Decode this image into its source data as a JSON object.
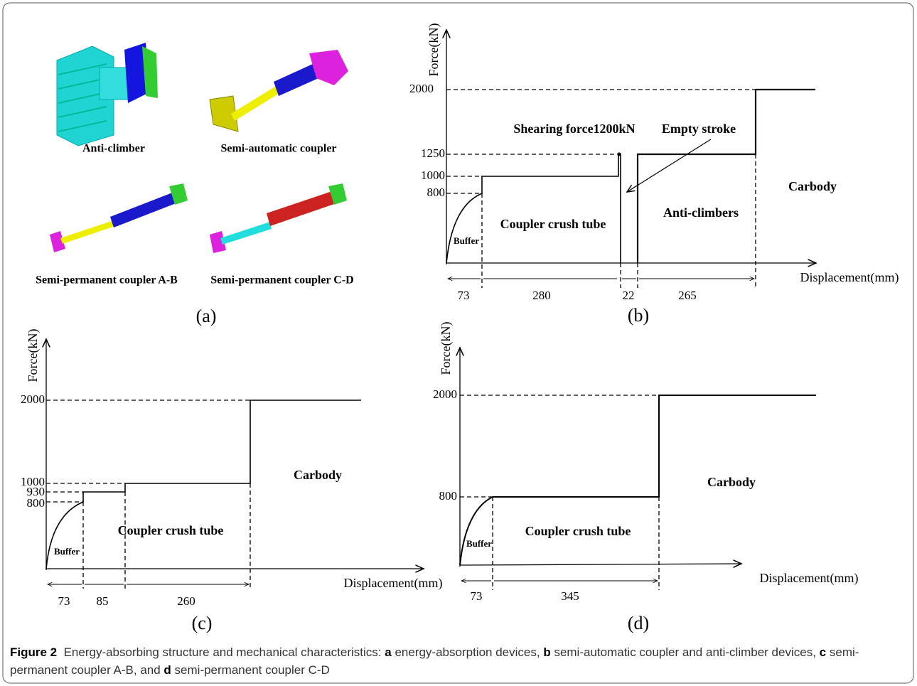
{
  "panel_a": {
    "labels": [
      "Anti-climber",
      "Semi-automatic coupler",
      "Semi-permanent coupler A-B",
      "Semi-permanent coupler C-D"
    ],
    "tag": "(a)"
  },
  "panel_b": {
    "y_label": "Force(kN)",
    "x_label": "Displacement(mm)",
    "force_ticks": [
      2000,
      1250,
      1000,
      800
    ],
    "segments": [
      73,
      280,
      22,
      265
    ],
    "annotations": [
      "Shearing force1200kN",
      "Empty stroke",
      "Buffer",
      "Coupler crush tube",
      "Anti-climbers",
      "Carbody"
    ],
    "tag": "(b)"
  },
  "panel_c": {
    "y_label": "Force(kN)",
    "x_label": "Displacement(mm)",
    "force_ticks": [
      2000,
      1000,
      930,
      800
    ],
    "segments": [
      73,
      85,
      260
    ],
    "annotations": [
      "Carbody",
      "Coupler crush tube",
      "Buffer"
    ],
    "tag": "(c)"
  },
  "panel_d": {
    "y_label": "Force(kN)",
    "x_label": "Displacement(mm)",
    "force_ticks": [
      2000,
      800
    ],
    "segments": [
      73,
      345
    ],
    "annotations": [
      "Carbody",
      "Coupler crush tube",
      "Buffer"
    ],
    "tag": "(d)"
  },
  "caption": {
    "label": "Figure 2",
    "lead": "Energy-absorbing structure and mechanical characteristics:",
    "items": [
      {
        "letter": "a",
        "text": "energy-absorption devices,"
      },
      {
        "letter": "b",
        "text": "semi-automatic coupler and anti-climber devices,"
      },
      {
        "letter": "c",
        "text": "semi-permanent coupler A-B, and"
      },
      {
        "letter": "d",
        "text": "semi-permanent coupler C-D"
      }
    ]
  }
}
